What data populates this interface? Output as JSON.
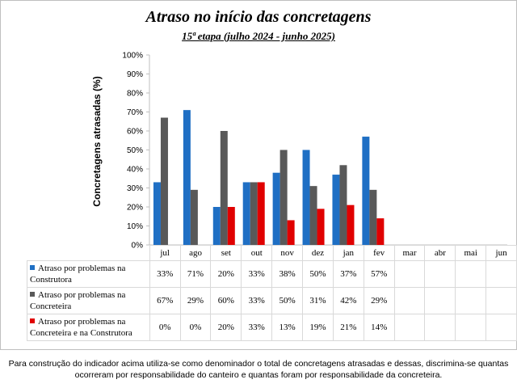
{
  "chart_data": {
    "type": "bar",
    "title": "Atraso no início das concretagens",
    "subtitle": "15ª etapa (julho 2024 - junho 2025)",
    "ylabel": "Concretagens atrasadas (%)",
    "xlabel": "",
    "ylim": [
      0,
      100
    ],
    "y_ticks": [
      "0%",
      "10%",
      "20%",
      "30%",
      "40%",
      "50%",
      "60%",
      "70%",
      "80%",
      "90%",
      "100%"
    ],
    "categories": [
      "jul",
      "ago",
      "set",
      "out",
      "nov",
      "dez",
      "jan",
      "fev",
      "mar",
      "abr",
      "mai",
      "jun"
    ],
    "grid": false,
    "legend": "table-rows-below",
    "series": [
      {
        "name": "Atraso por problemas na Construtora",
        "color": "#1f6fc4",
        "values": [
          33,
          71,
          20,
          33,
          38,
          50,
          37,
          57,
          null,
          null,
          null,
          null
        ],
        "labels": [
          "33%",
          "71%",
          "20%",
          "33%",
          "38%",
          "50%",
          "37%",
          "57%",
          "",
          "",
          "",
          ""
        ]
      },
      {
        "name": "Atraso por problemas na Concreteira",
        "color": "#595959",
        "values": [
          67,
          29,
          60,
          33,
          50,
          31,
          42,
          29,
          null,
          null,
          null,
          null
        ],
        "labels": [
          "67%",
          "29%",
          "60%",
          "33%",
          "50%",
          "31%",
          "42%",
          "29%",
          "",
          "",
          "",
          ""
        ]
      },
      {
        "name": "Atraso por problemas na Concreteira e na Construtora",
        "color": "#e00000",
        "values": [
          0,
          0,
          20,
          33,
          13,
          19,
          21,
          14,
          null,
          null,
          null,
          null
        ],
        "labels": [
          "0%",
          "0%",
          "20%",
          "33%",
          "13%",
          "19%",
          "21%",
          "14%",
          "",
          "",
          "",
          ""
        ]
      }
    ]
  },
  "footnote": "Para construção do indicador acima utiliza-se como denominador o total de concretagens atrasadas e dessas, discrimina-se quantas ocorreram por responsabilidade do canteiro e quantas foram por responsabilidade da concreteira."
}
